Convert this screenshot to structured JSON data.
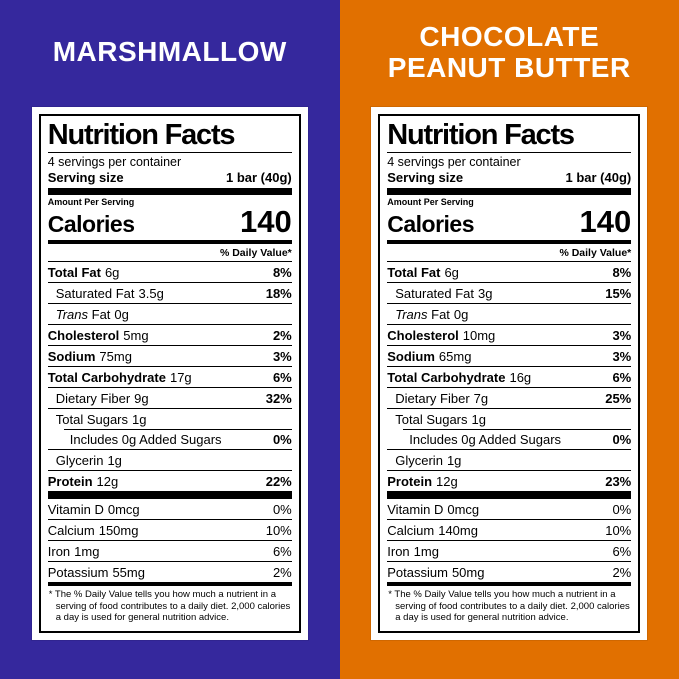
{
  "colors": {
    "left_bg": "#35289D",
    "right_bg": "#E17000",
    "label_bg": "#FFFFFF",
    "label_text": "#000000",
    "title_text": "#FFFFFF"
  },
  "panels": [
    {
      "title_line1": "MARSHMALLOW",
      "title_line2": "",
      "label": {
        "title": "Nutrition Facts",
        "servings_per_container": "4 servings per container",
        "serving_size_label": "Serving size",
        "serving_size_value": "1 bar (40g)",
        "amount_per_serving": "Amount Per Serving",
        "calories_label": "Calories",
        "calories_value": "140",
        "daily_value_header": "% Daily Value*",
        "rows": [
          {
            "name_b": "Total Fat",
            "amount": "6g",
            "dv": "8%",
            "dv_bold": true
          },
          {
            "name": "Saturated Fat",
            "amount": "3.5g",
            "dv": "18%",
            "dv_bold": true,
            "level": 1
          },
          {
            "name_i": "Trans",
            "name": " Fat",
            "amount": "0g",
            "level": 1
          },
          {
            "name_b": "Cholesterol",
            "amount": "5mg",
            "dv": "2%",
            "dv_bold": true
          },
          {
            "name_b": "Sodium",
            "amount": "75mg",
            "dv": "3%",
            "dv_bold": true
          },
          {
            "name_b": "Total Carbohydrate",
            "amount": "17g",
            "dv": "6%",
            "dv_bold": true
          },
          {
            "name": "Dietary Fiber",
            "amount": "9g",
            "dv": "32%",
            "dv_bold": true,
            "level": 1
          },
          {
            "name": "Total Sugars",
            "amount": "1g",
            "level": 1
          },
          {
            "name": "Includes 0g Added Sugars",
            "dv": "0%",
            "dv_bold": true,
            "level": 2,
            "sep_indent": true
          },
          {
            "name": "Glycerin",
            "amount": "1g",
            "level": 1
          },
          {
            "name_b": "Protein",
            "amount": "12g",
            "dv": "22%",
            "dv_bold": true
          }
        ],
        "vitamins": [
          {
            "name": "Vitamin D",
            "amount": "0mcg",
            "dv": "0%"
          },
          {
            "name": "Calcium",
            "amount": "150mg",
            "dv": "10%"
          },
          {
            "name": "Iron",
            "amount": "1mg",
            "dv": "6%"
          },
          {
            "name": "Potassium",
            "amount": "55mg",
            "dv": "2%"
          }
        ],
        "footnote": "* The % Daily Value tells you how much a nutrient in a serving of food contributes to a daily diet. 2,000 calories a day is used for general nutrition advice."
      }
    },
    {
      "title_line1": "CHOCOLATE",
      "title_line2": "PEANUT BUTTER",
      "label": {
        "title": "Nutrition Facts",
        "servings_per_container": "4 servings per container",
        "serving_size_label": "Serving size",
        "serving_size_value": "1 bar (40g)",
        "amount_per_serving": "Amount Per Serving",
        "calories_label": "Calories",
        "calories_value": "140",
        "daily_value_header": "% Daily Value*",
        "rows": [
          {
            "name_b": "Total Fat",
            "amount": "6g",
            "dv": "8%",
            "dv_bold": true
          },
          {
            "name": "Saturated Fat",
            "amount": "3g",
            "dv": "15%",
            "dv_bold": true,
            "level": 1
          },
          {
            "name_i": "Trans",
            "name": " Fat",
            "amount": "0g",
            "level": 1
          },
          {
            "name_b": "Cholesterol",
            "amount": "10mg",
            "dv": "3%",
            "dv_bold": true
          },
          {
            "name_b": "Sodium",
            "amount": "65mg",
            "dv": "3%",
            "dv_bold": true
          },
          {
            "name_b": "Total Carbohydrate",
            "amount": "16g",
            "dv": "6%",
            "dv_bold": true
          },
          {
            "name": "Dietary Fiber",
            "amount": "7g",
            "dv": "25%",
            "dv_bold": true,
            "level": 1
          },
          {
            "name": "Total Sugars",
            "amount": "1g",
            "level": 1
          },
          {
            "name": "Includes 0g Added Sugars",
            "dv": "0%",
            "dv_bold": true,
            "level": 2,
            "sep_indent": true
          },
          {
            "name": "Glycerin",
            "amount": "1g",
            "level": 1
          },
          {
            "name_b": "Protein",
            "amount": "12g",
            "dv": "23%",
            "dv_bold": true
          }
        ],
        "vitamins": [
          {
            "name": "Vitamin D",
            "amount": "0mcg",
            "dv": "0%"
          },
          {
            "name": "Calcium",
            "amount": "140mg",
            "dv": "10%"
          },
          {
            "name": "Iron",
            "amount": "1mg",
            "dv": "6%"
          },
          {
            "name": "Potassium",
            "amount": "50mg",
            "dv": "2%"
          }
        ],
        "footnote": "* The % Daily Value tells you how much a nutrient in a serving of food contributes to a daily diet. 2,000 calories a day is used for general nutrition advice."
      }
    }
  ]
}
